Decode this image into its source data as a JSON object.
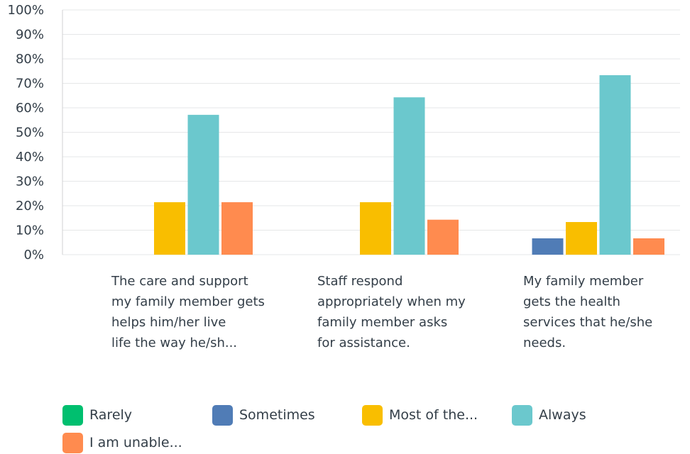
{
  "chart_data": {
    "type": "bar",
    "title": "",
    "xlabel": "",
    "ylabel": "",
    "ylim": [
      0,
      100
    ],
    "y_ticks": [
      "0%",
      "10%",
      "20%",
      "30%",
      "40%",
      "50%",
      "60%",
      "70%",
      "80%",
      "90%",
      "100%"
    ],
    "grid": true,
    "legend_position": "bottom",
    "categories": [
      "The care and support\nmy family member gets\nhelps him/her live\nlife the way he/sh...",
      "Staff respond\nappropriately when my\nfamily member asks\nfor assistance.",
      "My family member\ngets the health\nservices that he/she\nneeds."
    ],
    "series": [
      {
        "name": "Rarely",
        "color": "#00bf6f",
        "values": [
          0,
          0,
          0
        ]
      },
      {
        "name": "Sometimes",
        "color": "#507cb6",
        "values": [
          0,
          0,
          6.67
        ]
      },
      {
        "name": "Most of the...",
        "color": "#f9be00",
        "values": [
          21.43,
          21.43,
          13.33
        ]
      },
      {
        "name": "Always",
        "color": "#6bc8cd",
        "values": [
          57.14,
          64.29,
          73.33
        ]
      },
      {
        "name": "I am unable...",
        "color": "#ff8b4f",
        "values": [
          21.43,
          14.29,
          6.67
        ]
      }
    ]
  }
}
